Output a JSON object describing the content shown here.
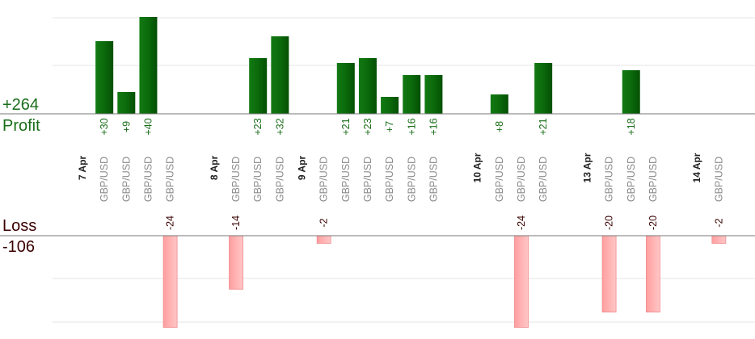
{
  "summary": {
    "profit_total": "+264",
    "profit_label": "Profit",
    "loss_label": "Loss",
    "loss_total": "-106"
  },
  "colors": {
    "profit_bar": "#0b6a0b",
    "profit_text": "#1a6e1a",
    "loss_bar": "#ffb3b3",
    "loss_text": "#3a0000",
    "date_text": "#222222",
    "pair_text": "#8a8a8a",
    "grid": "#e6e6e6",
    "axis": "#777777"
  },
  "chart_data": {
    "type": "bar",
    "xlabel": "",
    "ylabel": "",
    "profit_ylim": [
      0,
      47
    ],
    "loss_ylim": [
      -24.5,
      0
    ],
    "grid": true,
    "rows": [
      {
        "kind": "date",
        "label": "7 Apr"
      },
      {
        "kind": "trade",
        "pair": "GBP/USD",
        "value": 30,
        "label": "+30"
      },
      {
        "kind": "trade",
        "pair": "GBP/USD",
        "value": 9,
        "label": "+9"
      },
      {
        "kind": "trade",
        "pair": "GBP/USD",
        "value": 40,
        "label": "+40"
      },
      {
        "kind": "trade",
        "pair": "GBP/USD",
        "value": -24,
        "label": "-24"
      },
      {
        "kind": "gap"
      },
      {
        "kind": "date",
        "label": "8 Apr"
      },
      {
        "kind": "trade",
        "pair": "GBP/USD",
        "value": -14,
        "label": "-14"
      },
      {
        "kind": "trade",
        "pair": "GBP/USD",
        "value": 23,
        "label": "+23"
      },
      {
        "kind": "trade",
        "pair": "GBP/USD",
        "value": 32,
        "label": "+32"
      },
      {
        "kind": "date",
        "label": "9 Apr"
      },
      {
        "kind": "trade",
        "pair": "GBP/USD",
        "value": -2,
        "label": "-2"
      },
      {
        "kind": "trade",
        "pair": "GBP/USD",
        "value": 21,
        "label": "+21"
      },
      {
        "kind": "trade",
        "pair": "GBP/USD",
        "value": 23,
        "label": "+23"
      },
      {
        "kind": "trade",
        "pair": "GBP/USD",
        "value": 7,
        "label": "+7"
      },
      {
        "kind": "trade",
        "pair": "GBP/USD",
        "value": 16,
        "label": "+16"
      },
      {
        "kind": "trade",
        "pair": "GBP/USD",
        "value": 16,
        "label": "+16"
      },
      {
        "kind": "gap"
      },
      {
        "kind": "date",
        "label": "10 Apr"
      },
      {
        "kind": "trade",
        "pair": "GBP/USD",
        "value": 8,
        "label": "+8"
      },
      {
        "kind": "trade",
        "pair": "GBP/USD",
        "value": -24,
        "label": "-24"
      },
      {
        "kind": "trade",
        "pair": "GBP/USD",
        "value": 21,
        "label": "+21"
      },
      {
        "kind": "gap"
      },
      {
        "kind": "date",
        "label": "13 Apr"
      },
      {
        "kind": "trade",
        "pair": "GBP/USD",
        "value": -20,
        "label": "-20"
      },
      {
        "kind": "trade",
        "pair": "GBP/USD",
        "value": 18,
        "label": "+18"
      },
      {
        "kind": "trade",
        "pair": "GBP/USD",
        "value": -20,
        "label": "-20"
      },
      {
        "kind": "gap"
      },
      {
        "kind": "date",
        "label": "14 Apr"
      },
      {
        "kind": "trade",
        "pair": "GBP/USD",
        "value": -2,
        "label": "-2"
      }
    ]
  }
}
